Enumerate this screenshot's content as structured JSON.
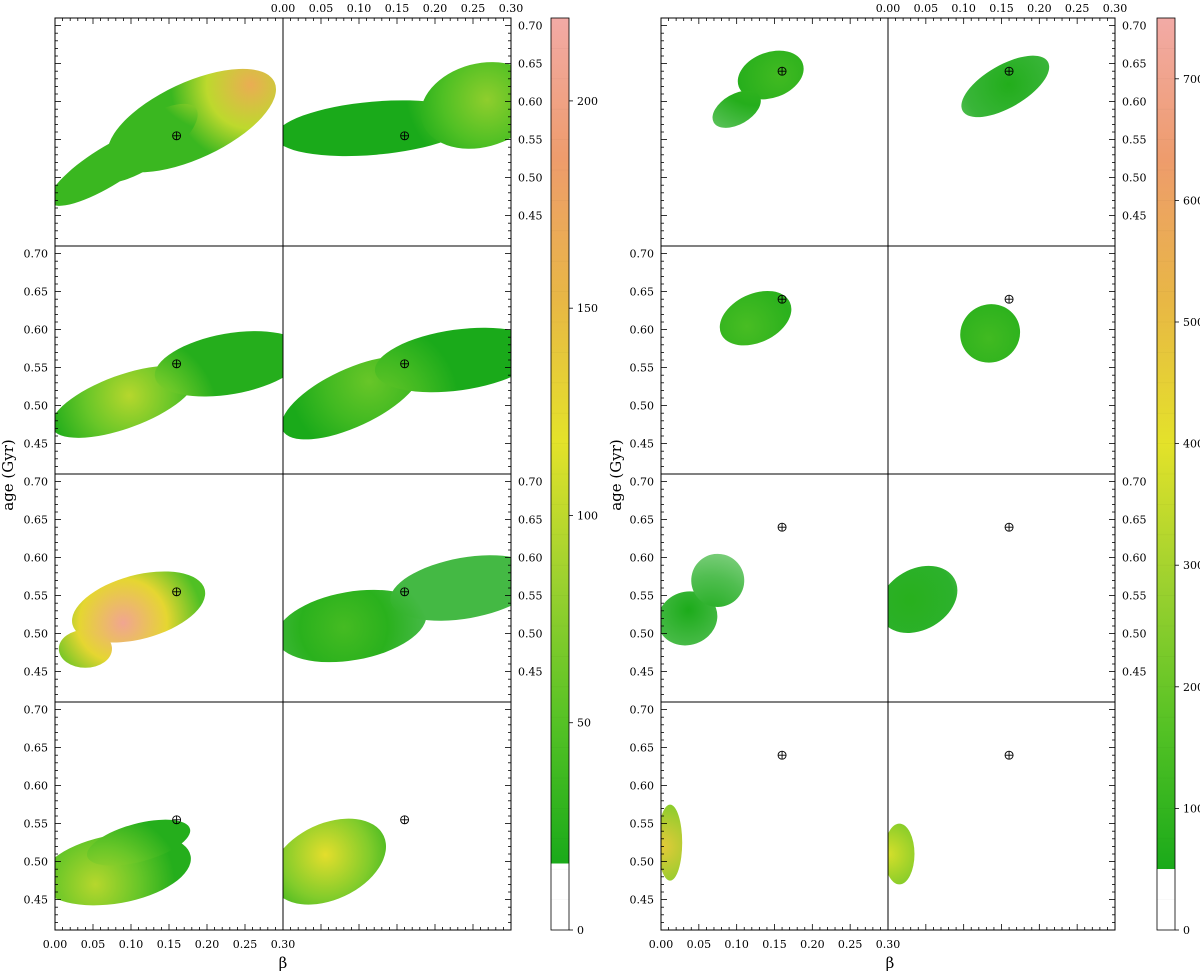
{
  "chart_data": [
    {
      "type": "heatmap",
      "panel_group": "left",
      "xlabel": "β",
      "ylabel": "age (Gyr)",
      "x_ticks": [
        "0.00",
        "0.05",
        "0.10",
        "0.15",
        "0.20",
        "0.25",
        "0.30"
      ],
      "xlim": [
        0,
        0.3
      ],
      "y_ticks": [
        "0.45",
        "0.50",
        "0.55",
        "0.60",
        "0.65",
        "0.70"
      ],
      "ylim": [
        0.41,
        0.71
      ],
      "colorbar_ticks": [
        "0",
        "50",
        "100",
        "150",
        "200"
      ],
      "colorbar_range": [
        0,
        220
      ],
      "colorbar_stops": [
        "#ffffff",
        "#ffffff",
        "#1aaa1a",
        "#55c225",
        "#9cd12f",
        "#e4e22a",
        "#e8b745",
        "#ee9c6c",
        "#f2aaa6"
      ],
      "marker": {
        "x": 0.16,
        "y_row": [
          0.555,
          0.555,
          0.555,
          0.555
        ]
      },
      "panels": [
        {
          "row": 0,
          "col": 0,
          "blobs": [
            {
              "x": 0.07,
              "y": 0.515,
              "w": 0.09,
              "h": 0.025,
              "a": -32
            },
            {
              "x": 0.18,
              "y": 0.575,
              "w": 0.12,
              "h": 0.05,
              "a": -25
            },
            {
              "x": 0.12,
              "y": 0.545,
              "w": 0.08,
              "h": 0.03,
              "a": -35
            }
          ],
          "peak": {
            "x": 0.27,
            "y": 0.585,
            "v": 175
          },
          "base": 70
        },
        {
          "row": 0,
          "col": 1,
          "blobs": [
            {
              "x": 0.12,
              "y": 0.565,
              "w": 0.13,
              "h": 0.035,
              "a": -5
            },
            {
              "x": 0.26,
              "y": 0.595,
              "w": 0.08,
              "h": 0.055,
              "a": -15
            }
          ],
          "peak": {
            "x": 0.27,
            "y": 0.6,
            "v": 105
          },
          "base": 55
        },
        {
          "row": 1,
          "col": 0,
          "blobs": [
            {
              "x": 0.09,
              "y": 0.505,
              "w": 0.1,
              "h": 0.035,
              "a": -20
            },
            {
              "x": 0.23,
              "y": 0.555,
              "w": 0.1,
              "h": 0.04,
              "a": -10
            }
          ],
          "peak": {
            "x": 0.1,
            "y": 0.51,
            "v": 120
          },
          "base": 60
        },
        {
          "row": 1,
          "col": 1,
          "blobs": [
            {
              "x": 0.09,
              "y": 0.51,
              "w": 0.1,
              "h": 0.038,
              "a": -25
            },
            {
              "x": 0.23,
              "y": 0.56,
              "w": 0.11,
              "h": 0.04,
              "a": -8
            }
          ],
          "peak": {
            "x": 0.12,
            "y": 0.52,
            "v": 90
          },
          "base": 55
        },
        {
          "row": 2,
          "col": 0,
          "blobs": [
            {
              "x": 0.11,
              "y": 0.535,
              "w": 0.09,
              "h": 0.042,
              "a": -15
            },
            {
              "x": 0.04,
              "y": 0.48,
              "w": 0.035,
              "h": 0.025,
              "a": 0
            }
          ],
          "peak": {
            "x": 0.085,
            "y": 0.52,
            "v": 210
          },
          "base": 80
        },
        {
          "row": 2,
          "col": 1,
          "blobs": [
            {
              "x": 0.09,
              "y": 0.51,
              "w": 0.1,
              "h": 0.045,
              "a": -10
            },
            {
              "x": 0.24,
              "y": 0.56,
              "w": 0.1,
              "h": 0.04,
              "a": -10
            }
          ],
          "peak": {
            "x": 0.08,
            "y": 0.51,
            "v": 75
          },
          "base": 50
        },
        {
          "row": 3,
          "col": 0,
          "blobs": [
            {
              "x": 0.08,
              "y": 0.49,
              "w": 0.1,
              "h": 0.045,
              "a": -10
            },
            {
              "x": 0.11,
              "y": 0.525,
              "w": 0.07,
              "h": 0.025,
              "a": -15
            }
          ],
          "peak": {
            "x": 0.05,
            "y": 0.475,
            "v": 120
          },
          "base": 60
        },
        {
          "row": 3,
          "col": 1,
          "blobs": [
            {
              "x": 0.06,
              "y": 0.5,
              "w": 0.08,
              "h": 0.05,
              "a": -25
            }
          ],
          "peak": {
            "x": 0.06,
            "y": 0.51,
            "v": 140
          },
          "base": 60
        }
      ]
    },
    {
      "type": "heatmap",
      "panel_group": "right",
      "xlabel": "β",
      "ylabel": "age (Gyr)",
      "x_ticks": [
        "0.00",
        "0.05",
        "0.10",
        "0.15",
        "0.20",
        "0.25",
        "0.30"
      ],
      "xlim": [
        0,
        0.3
      ],
      "y_ticks": [
        "0.45",
        "0.50",
        "0.55",
        "0.60",
        "0.65",
        "0.70"
      ],
      "ylim": [
        0.41,
        0.71
      ],
      "colorbar_ticks": [
        "0",
        "100",
        "200",
        "300",
        "400",
        "500",
        "600",
        "700"
      ],
      "colorbar_range": [
        0,
        750
      ],
      "colorbar_stops": [
        "#ffffff",
        "#ffffff",
        "#1aaa1a",
        "#55c225",
        "#9cd12f",
        "#e4e22a",
        "#e8b745",
        "#ee9c6c",
        "#f2aaa6"
      ],
      "marker": {
        "x": 0.16,
        "y_row": [
          0.64,
          0.64,
          0.64,
          0.64
        ]
      },
      "panels": [
        {
          "row": 0,
          "col": 0,
          "blobs": [
            {
              "x": 0.145,
              "y": 0.635,
              "w": 0.045,
              "h": 0.03,
              "a": -20
            },
            {
              "x": 0.1,
              "y": 0.59,
              "w": 0.035,
              "h": 0.02,
              "a": -30
            }
          ],
          "peak": {
            "x": 0.155,
            "y": 0.63,
            "v": 250
          },
          "base": 160
        },
        {
          "row": 0,
          "col": 1,
          "blobs": [
            {
              "x": 0.155,
              "y": 0.62,
              "w": 0.065,
              "h": 0.028,
              "a": -30
            }
          ],
          "peak": {
            "x": 0.16,
            "y": 0.62,
            "v": 200
          },
          "base": 150
        },
        {
          "row": 1,
          "col": 0,
          "blobs": [
            {
              "x": 0.125,
              "y": 0.615,
              "w": 0.05,
              "h": 0.032,
              "a": -25
            }
          ],
          "peak": {
            "x": 0.11,
            "y": 0.61,
            "v": 260
          },
          "base": 170
        },
        {
          "row": 1,
          "col": 1,
          "blobs": [
            {
              "x": 0.135,
              "y": 0.595,
              "w": 0.04,
              "h": 0.038,
              "a": -30
            }
          ],
          "peak": {
            "x": 0.13,
            "y": 0.59,
            "v": 250
          },
          "base": 170
        },
        {
          "row": 2,
          "col": 0,
          "blobs": [
            {
              "x": 0.035,
              "y": 0.52,
              "w": 0.04,
              "h": 0.035,
              "a": -20
            },
            {
              "x": 0.075,
              "y": 0.57,
              "w": 0.035,
              "h": 0.035,
              "a": -30
            }
          ],
          "peak": {
            "x": 0.04,
            "y": 0.53,
            "v": 190
          },
          "base": 140
        },
        {
          "row": 2,
          "col": 1,
          "blobs": [
            {
              "x": 0.04,
              "y": 0.545,
              "w": 0.055,
              "h": 0.04,
              "a": -30
            }
          ],
          "peak": {
            "x": 0.03,
            "y": 0.55,
            "v": 210
          },
          "base": 150
        },
        {
          "row": 3,
          "col": 0,
          "blobs": [
            {
              "x": 0.012,
              "y": 0.525,
              "w": 0.016,
              "h": 0.05,
              "a": 0
            }
          ],
          "peak": {
            "x": 0.0,
            "y": 0.52,
            "v": 520
          },
          "base": 180
        },
        {
          "row": 3,
          "col": 1,
          "blobs": [
            {
              "x": 0.015,
              "y": 0.51,
              "w": 0.02,
              "h": 0.04,
              "a": 0
            }
          ],
          "peak": {
            "x": 0.0,
            "y": 0.51,
            "v": 450
          },
          "base": 180
        }
      ]
    }
  ]
}
